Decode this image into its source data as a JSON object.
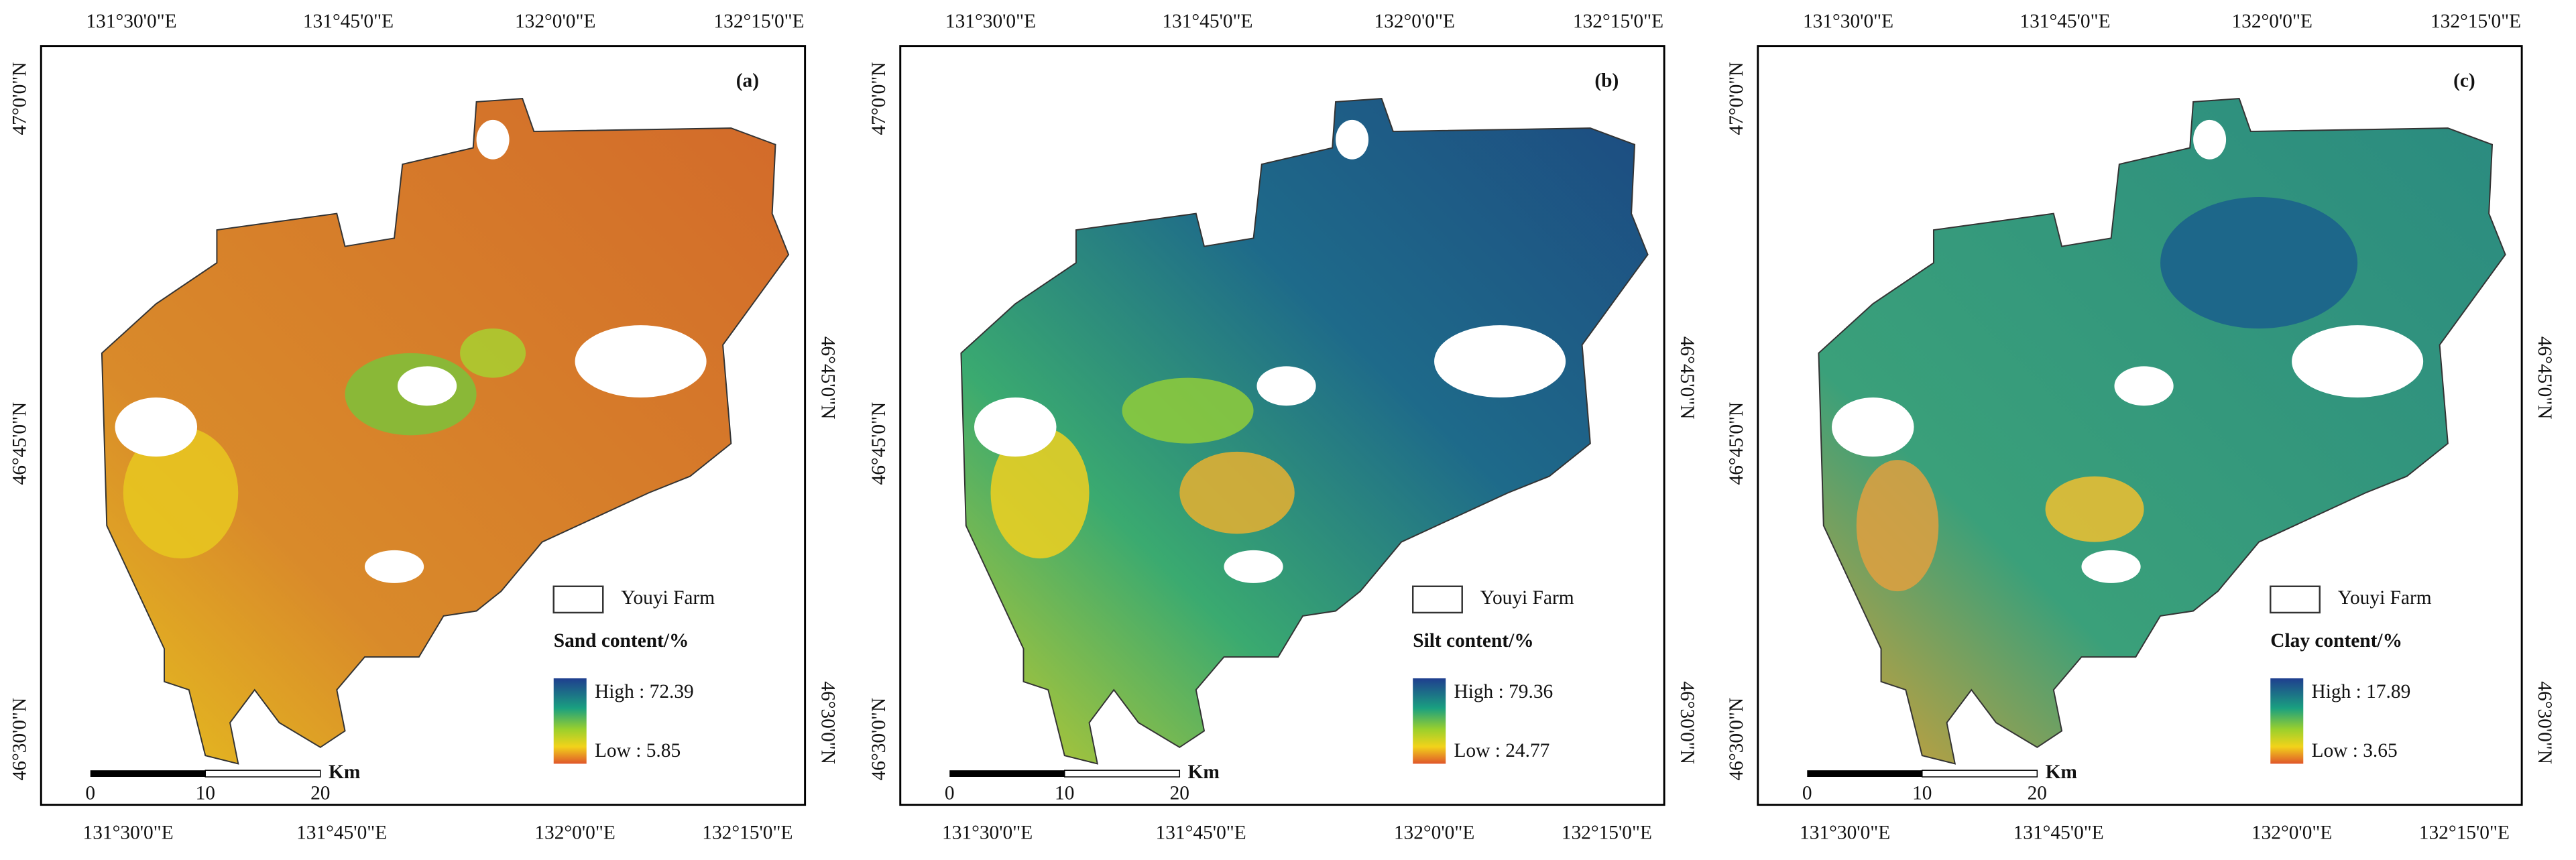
{
  "panels": [
    {
      "label": "(a)",
      "legend_boundary": "Youyi Farm",
      "legend_title": "Sand content/%",
      "legend_high": "High : 72.39",
      "legend_low": "Low : 5.85"
    },
    {
      "label": "(b)",
      "legend_boundary": "Youyi Farm",
      "legend_title": "Silt content/%",
      "legend_high": "High : 79.36",
      "legend_low": "Low : 24.77"
    },
    {
      "label": "(c)",
      "legend_boundary": "Youyi Farm",
      "legend_title": "Clay content/%",
      "legend_high": "High : 17.89",
      "legend_low": "Low : 3.65"
    }
  ],
  "axes": {
    "longitude": [
      "131°30'0\"E",
      "131°45'0\"E",
      "132°0'0\"E",
      "132°15'0\"E"
    ],
    "latitude_left": [
      "47°0'0\"N",
      "46°45'0\"N",
      "46°30'0\"N"
    ],
    "latitude_right": [
      "46°45'0\"N",
      "46°30'0\"N"
    ]
  },
  "scale_bar": {
    "unit": "Km",
    "ticks": [
      0,
      10,
      20
    ]
  }
}
